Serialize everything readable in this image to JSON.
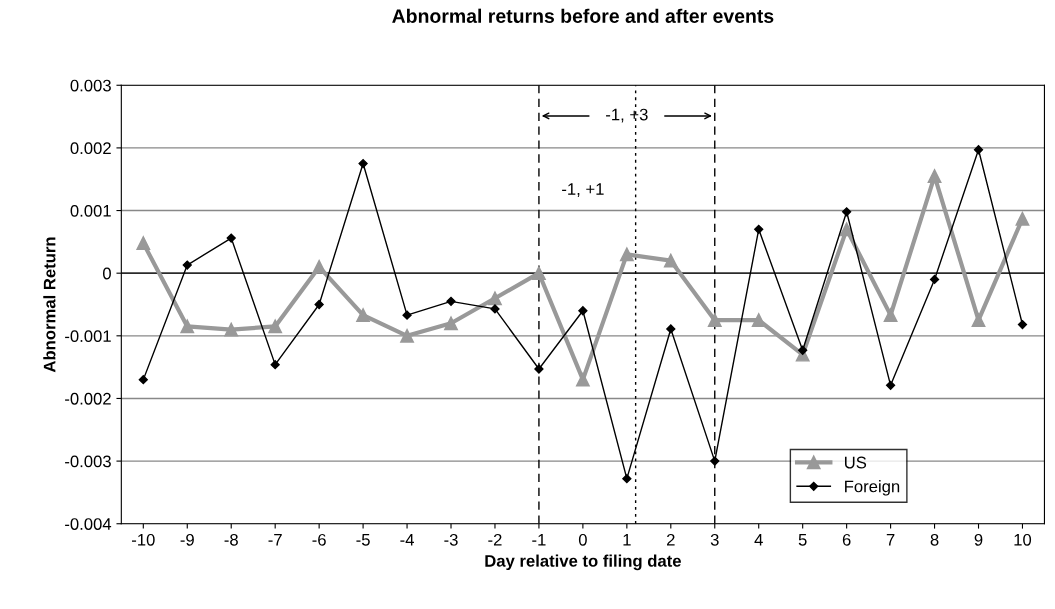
{
  "chart_data": {
    "type": "line",
    "title": "Abnormal returns before and after events",
    "xlabel": "Day relative to filing date",
    "ylabel": "Abnormal Return",
    "x": [
      -10,
      -9,
      -8,
      -7,
      -6,
      -5,
      -4,
      -3,
      -2,
      -1,
      0,
      1,
      2,
      3,
      4,
      5,
      6,
      7,
      8,
      9,
      10
    ],
    "xlim": [
      -10.5,
      10.5
    ],
    "xticks": [
      -10,
      -9,
      -8,
      -7,
      -6,
      -5,
      -4,
      -3,
      -2,
      -1,
      0,
      1,
      2,
      3,
      4,
      5,
      6,
      7,
      8,
      9,
      10
    ],
    "ylim": [
      -0.004,
      0.003
    ],
    "yticks": [
      {
        "value": -0.004,
        "label": "-0.004"
      },
      {
        "value": -0.003,
        "label": "-0.003"
      },
      {
        "value": -0.002,
        "label": "-0.002"
      },
      {
        "value": -0.001,
        "label": "-0.001"
      },
      0,
      {
        "value": 0.001,
        "label": "0.001"
      },
      {
        "value": 0.002,
        "label": "0.002"
      },
      {
        "value": 0.003,
        "label": "0.003"
      }
    ],
    "series": [
      {
        "name": "US",
        "color": "#999999",
        "marker": "triangle",
        "values": [
          0.00048,
          -0.00085,
          -0.0009,
          -0.00085,
          0.0001,
          -0.00067,
          -0.001,
          -0.0008,
          -0.0004,
          0.0,
          -0.0017,
          0.0003,
          0.0002,
          -0.00075,
          -0.00075,
          -0.0013,
          0.0007,
          -0.00067,
          0.00155,
          -0.00075,
          0.00087
        ]
      },
      {
        "name": "Foreign",
        "color": "#000000",
        "marker": "diamond",
        "values": [
          -0.0017,
          0.00013,
          0.00056,
          -0.00146,
          -0.0005,
          0.00175,
          -0.00067,
          -0.00045,
          -0.00057,
          -0.00153,
          -0.0006,
          -0.00328,
          -0.00089,
          -0.003,
          0.0007,
          -0.00123,
          0.00098,
          -0.00179,
          -0.0001,
          0.00197,
          -0.00082
        ]
      }
    ],
    "ref_lines": [
      {
        "axis": "y",
        "value": 0,
        "color": "#000000",
        "line_style": "solid"
      },
      {
        "axis": "x",
        "value": -1,
        "color": "#000000",
        "line_style": "dashed"
      },
      {
        "axis": "x",
        "value": 3,
        "color": "#000000",
        "line_style": "dashed"
      },
      {
        "axis": "x",
        "value": 1.2,
        "color": "#000000",
        "line_style": "dotted"
      }
    ],
    "annotations": [
      "-1, +3",
      "-1, +1"
    ],
    "grid": "y",
    "legend": "bottom right",
    "line_style": "solid"
  }
}
